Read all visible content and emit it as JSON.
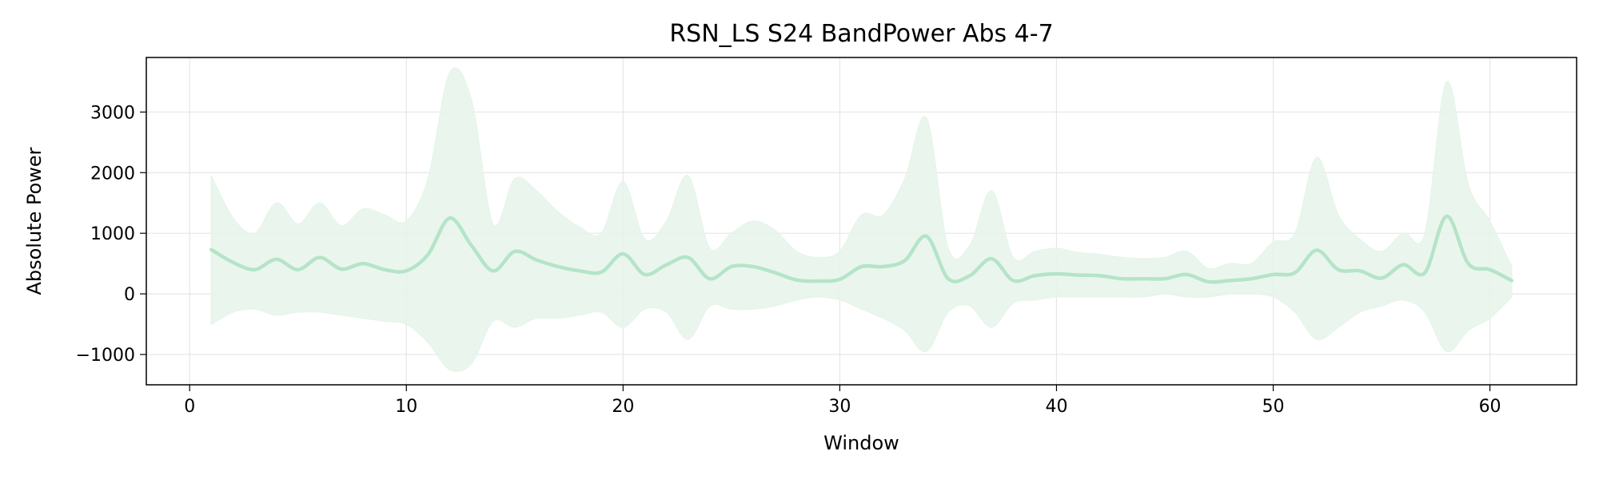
{
  "chart_data": {
    "type": "line",
    "title": "RSN_LS S24 BandPower Abs 4-7",
    "xlabel": "Window",
    "ylabel": "Absolute Power",
    "xlim": [
      -2,
      64
    ],
    "ylim": [
      -1500,
      3900
    ],
    "xticks": [
      0,
      10,
      20,
      30,
      40,
      50,
      60
    ],
    "xtick_labels": [
      "0",
      "10",
      "20",
      "30",
      "40",
      "50",
      "60"
    ],
    "yticks": [
      -1000,
      0,
      1000,
      2000,
      3000
    ],
    "ytick_labels": [
      "−1000",
      "0",
      "1000",
      "2000",
      "3000"
    ],
    "grid": true,
    "series": [
      {
        "color": "#b5e4c8",
        "band_color": "#e6f5ea",
        "x": [
          1,
          2,
          3,
          4,
          5,
          6,
          7,
          8,
          9,
          10,
          11,
          12,
          13,
          14,
          15,
          16,
          17,
          18,
          19,
          20,
          21,
          22,
          23,
          24,
          25,
          26,
          27,
          28,
          29,
          30,
          31,
          32,
          33,
          34,
          35,
          36,
          37,
          38,
          39,
          40,
          41,
          42,
          43,
          44,
          45,
          46,
          47,
          48,
          49,
          50,
          51,
          52,
          53,
          54,
          55,
          56,
          57,
          58,
          59,
          60,
          61
        ],
        "mean": [
          730,
          520,
          400,
          570,
          400,
          600,
          410,
          500,
          400,
          380,
          650,
          1250,
          800,
          380,
          700,
          560,
          450,
          380,
          360,
          660,
          320,
          480,
          600,
          250,
          450,
          450,
          350,
          230,
          210,
          240,
          450,
          450,
          550,
          950,
          250,
          300,
          580,
          220,
          300,
          330,
          310,
          300,
          250,
          250,
          250,
          320,
          200,
          220,
          250,
          320,
          350,
          720,
          400,
          380,
          260,
          480,
          350,
          1280,
          500,
          400,
          220
        ],
        "upper": [
          1950,
          1250,
          1000,
          1500,
          1150,
          1500,
          1120,
          1400,
          1300,
          1200,
          1900,
          3650,
          3200,
          1150,
          1900,
          1700,
          1350,
          1100,
          1000,
          1850,
          900,
          1200,
          1950,
          750,
          1000,
          1200,
          1050,
          700,
          600,
          700,
          1300,
          1300,
          1900,
          2900,
          750,
          800,
          1700,
          600,
          700,
          750,
          680,
          650,
          600,
          580,
          600,
          700,
          420,
          500,
          500,
          850,
          1000,
          2250,
          1300,
          900,
          700,
          1000,
          1000,
          3500,
          1800,
          1200,
          450
        ],
        "lower": [
          -500,
          -300,
          -250,
          -350,
          -300,
          -300,
          -350,
          -400,
          -450,
          -500,
          -800,
          -1250,
          -1150,
          -450,
          -550,
          -400,
          -400,
          -350,
          -300,
          -550,
          -250,
          -300,
          -750,
          -200,
          -250,
          -250,
          -200,
          -100,
          -50,
          -100,
          -250,
          -400,
          -600,
          -950,
          -300,
          -200,
          -550,
          -150,
          -100,
          -50,
          -50,
          -50,
          -50,
          -50,
          0,
          -50,
          -50,
          0,
          0,
          -50,
          -300,
          -750,
          -550,
          -300,
          -200,
          -100,
          -300,
          -950,
          -600,
          -400,
          -50
        ]
      }
    ]
  }
}
